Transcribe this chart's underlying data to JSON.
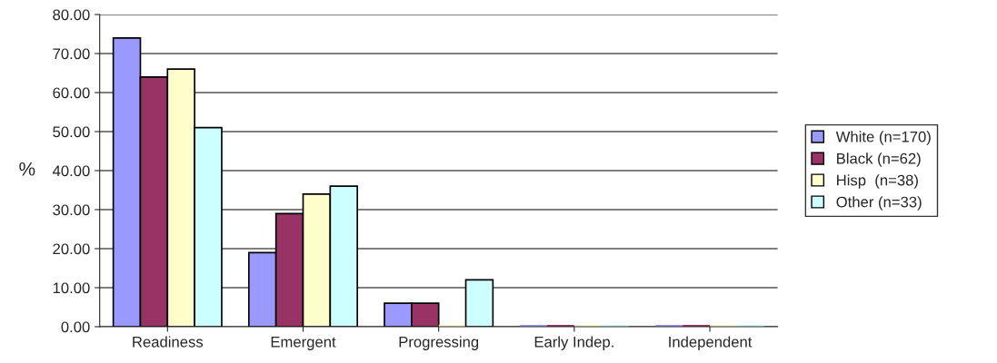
{
  "chart_data": {
    "type": "bar",
    "ylabel": "%",
    "categories": [
      "Readiness",
      "Emergent",
      "Progressing",
      "Early Indep.",
      "Independent"
    ],
    "series": [
      {
        "name": "White (n=170)",
        "color": "#9999ff",
        "values": [
          74,
          19,
          6,
          0,
          0
        ]
      },
      {
        "name": "Black (n=62)",
        "color": "#993366",
        "values": [
          64,
          29,
          6,
          0,
          0
        ]
      },
      {
        "name": "Hisp  (n=38)",
        "color": "#ffffcc",
        "values": [
          66,
          34,
          0,
          0,
          0
        ]
      },
      {
        "name": "Other (n=33)",
        "color": "#ccffff",
        "values": [
          51,
          36,
          12,
          0,
          0
        ]
      }
    ],
    "ylim": [
      0,
      80
    ],
    "yticks": [
      {
        "value": 0,
        "label": "0.00"
      },
      {
        "value": 10,
        "label": "10.00"
      },
      {
        "value": 20,
        "label": "20.00"
      },
      {
        "value": 30,
        "label": "30.00"
      },
      {
        "value": 40,
        "label": "40.00"
      },
      {
        "value": 50,
        "label": "50.00"
      },
      {
        "value": 60,
        "label": "60.00"
      },
      {
        "value": 70,
        "label": "70.00"
      },
      {
        "value": 80,
        "label": "80.00"
      }
    ],
    "grid": "y",
    "legend": "right"
  }
}
